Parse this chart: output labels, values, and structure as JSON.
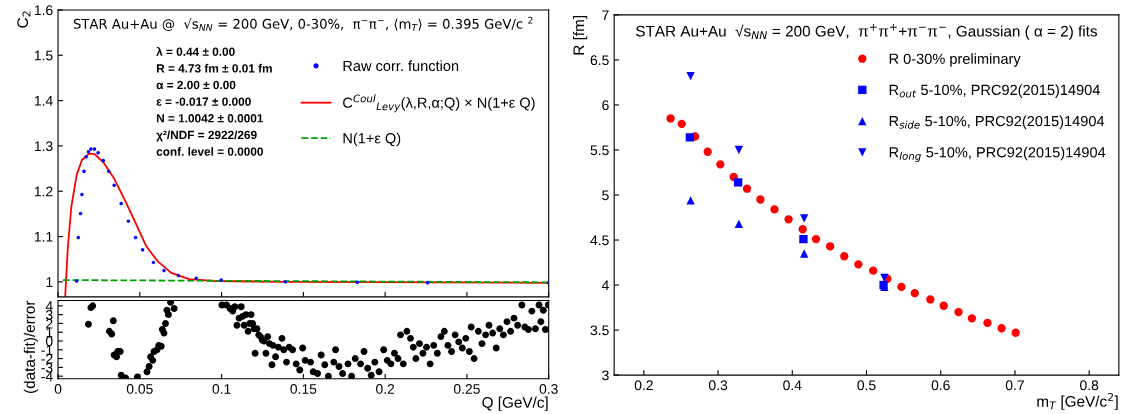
{
  "chart_data": [
    {
      "type": "line",
      "title": "STAR Au+Au @  √s$_{NN}$ = 200 GeV, 0-30%,  π$^{−}$π$^{−}$, ⟨m$_{T}$⟩ = 0.395 GeV/c $^{2}$",
      "ylabel": "C$_{2}$",
      "xlim": [
        0,
        0.3
      ],
      "xticks": [
        0,
        0.05,
        0.1,
        0.15,
        0.2,
        0.25,
        0.3
      ],
      "ylim": [
        0.967,
        1.6
      ],
      "yticks": [
        1,
        1.1,
        1.2,
        1.3,
        1.4,
        1.5,
        1.6
      ],
      "tick_labels": "y",
      "legend": "top right",
      "annotations": [
        "λ = 0.44 ± 0.00",
        "R = 4.73 fm ± 0.01 fm",
        "α = 2.00 ± 0.00",
        "ε = -0.017 ± 0.000",
        "N = 1.0042 ± 0.0001",
        "χ²/NDF = 2922/269",
        "conf. level = 0.0000"
      ],
      "series": [
        {
          "name": "Raw corr. function",
          "type": "scatter",
          "marker": "circle",
          "color": "#0000ff",
          "x": [
            0.0114,
            0.0124,
            0.0138,
            0.0146,
            0.0159,
            0.0172,
            0.0186,
            0.0201,
            0.0223,
            0.0245,
            0.0277,
            0.031,
            0.0343,
            0.0386,
            0.043,
            0.0474,
            0.0517,
            0.0583,
            0.0648,
            0.0736,
            0.0845,
            0.0998,
            0.139,
            0.183,
            0.226,
            0.3
          ],
          "values": [
            1.002,
            1.098,
            1.151,
            1.193,
            1.244,
            1.276,
            1.287,
            1.293,
            1.293,
            1.285,
            1.268,
            1.244,
            1.213,
            1.173,
            1.134,
            1.098,
            1.071,
            1.043,
            1.025,
            1.014,
            1.008,
            1.004,
            1.0,
            0.999,
            0.998,
            0.998
          ]
        },
        {
          "name": "C$^{Coul}$$_{Levy}$(λ,R,α;Q) × N(1+ε Q)",
          "line_style": "solid",
          "color": "#ff0000",
          "x": [
            0.0044,
            0.0059,
            0.0081,
            0.0114,
            0.0146,
            0.019,
            0.0223,
            0.0277,
            0.0343,
            0.0408,
            0.0474,
            0.0539,
            0.0605,
            0.0692,
            0.0801,
            0.0954,
            0.139,
            0.3
          ],
          "values": [
            0.969,
            1.071,
            1.165,
            1.236,
            1.269,
            1.283,
            1.282,
            1.264,
            1.228,
            1.181,
            1.13,
            1.079,
            1.047,
            1.02,
            1.006,
            1.002,
            1.0,
            0.998
          ]
        },
        {
          "name": "N(1+ε Q)",
          "line_style": "dashed",
          "color": "#00a000",
          "x": [
            0.003,
            0.3
          ],
          "values": [
            1.004,
            0.999
          ]
        }
      ]
    },
    {
      "type": "scatter",
      "ylabel": "(data-fit)/error",
      "xlabel": "Q [GeV/c]",
      "xlim": [
        0,
        0.3
      ],
      "xticks": [
        0,
        0.05,
        0.1,
        0.15,
        0.2,
        0.25,
        0.3
      ],
      "ylim": [
        -4.3,
        4.6
      ],
      "yticks": [
        -4,
        -3,
        -2,
        -1,
        0,
        1,
        2,
        3,
        4
      ],
      "series": [
        {
          "marker": "circle",
          "color": "#000000",
          "x": [
            0.0186,
            0.0201,
            0.0212,
            0.0314,
            0.0328,
            0.0338,
            0.0343,
            0.0358,
            0.0365,
            0.038,
            0.0386,
            0.0413,
            0.0485,
            0.0544,
            0.0557,
            0.0566,
            0.0579,
            0.0587,
            0.0605,
            0.0616,
            0.0631,
            0.0638,
            0.0648,
            0.0657,
            0.0666,
            0.0675,
            0.0688,
            0.071,
            0.1002,
            0.103,
            0.1052,
            0.1068,
            0.1081,
            0.1094,
            0.1107,
            0.112,
            0.1129,
            0.1138,
            0.115,
            0.1162,
            0.1172,
            0.118,
            0.119,
            0.1199,
            0.1205,
            0.1216,
            0.1227,
            0.1238,
            0.1249,
            0.126,
            0.1271,
            0.1282,
            0.1293,
            0.1308,
            0.1314,
            0.133,
            0.1347,
            0.1369,
            0.138,
            0.1397,
            0.1413,
            0.1434,
            0.1456,
            0.1478,
            0.1496,
            0.1511,
            0.1544,
            0.156,
            0.1587,
            0.1609,
            0.1631,
            0.1653,
            0.1686,
            0.1697,
            0.1718,
            0.174,
            0.1773,
            0.1795,
            0.1817,
            0.185,
            0.1871,
            0.1893,
            0.1915,
            0.1937,
            0.1963,
            0.1991,
            0.2013,
            0.2035,
            0.2057,
            0.2079,
            0.2094,
            0.2111,
            0.2133,
            0.2155,
            0.2172,
            0.2188,
            0.221,
            0.2231,
            0.2253,
            0.2275,
            0.2297,
            0.2319,
            0.2341,
            0.2362,
            0.2384,
            0.2406,
            0.2428,
            0.245,
            0.2472,
            0.2493,
            0.2515,
            0.2526,
            0.2544,
            0.257,
            0.2592,
            0.2614,
            0.2635,
            0.2657,
            0.2679,
            0.2701,
            0.2723,
            0.2745,
            0.2767,
            0.2788,
            0.281,
            0.2836,
            0.2854,
            0.2876,
            0.2897,
            0.2919,
            0.2941,
            0.2952,
            0.2967,
            0.298,
            0.2998
          ],
          "values": [
            1.9,
            3.8,
            4.0,
            1.1,
            0.8,
            2.3,
            -1.6,
            -1.8,
            -1.2,
            -1.2,
            -3.9,
            -4.2,
            -4.1,
            -3.5,
            -2.9,
            -1.8,
            -2.2,
            -1.2,
            -1.0,
            -0.5,
            -0.6,
            1.3,
            0.9,
            2.0,
            3.5,
            3.0,
            4.4,
            3.7,
            4.1,
            4.1,
            3.7,
            3.4,
            3.9,
            1.8,
            2.6,
            3.9,
            2.8,
            1.8,
            3.0,
            1.1,
            2.0,
            3.0,
            2.0,
            1.4,
            -1.4,
            1.4,
            0.7,
            0.5,
            0.1,
            0.0,
            -1.4,
            0.5,
            -0.3,
            -2.7,
            -0.5,
            -1.8,
            -0.7,
            0.3,
            -1.0,
            -2.4,
            -0.7,
            -1.0,
            -2.6,
            -3.3,
            -0.8,
            -2.2,
            -2.4,
            -3.5,
            -3.7,
            -1.6,
            -2.7,
            -4.0,
            -2.4,
            -1.0,
            -2.9,
            -3.7,
            -2.6,
            -4.0,
            -2.0,
            -2.6,
            -1.2,
            -3.1,
            -3.9,
            -2.4,
            -3.5,
            -1.0,
            -2.2,
            -2.6,
            -1.4,
            -2.0,
            0.7,
            -2.6,
            1.1,
            0.3,
            -0.7,
            -2.0,
            -0.3,
            -1.4,
            -0.7,
            -2.6,
            -0.5,
            -1.4,
            0.5,
            1.1,
            -0.5,
            -1.2,
            0.7,
            -0.1,
            -0.8,
            0.3,
            -1.2,
            1.6,
            -2.0,
            1.1,
            -0.3,
            0.7,
            1.8,
            0.9,
            -0.8,
            1.4,
            0.7,
            2.2,
            1.1,
            2.6,
            1.8,
            4.1,
            1.6,
            1.3,
            3.4,
            1.4,
            4.1,
            2.2,
            3.5,
            1.3,
            4.1
          ]
        }
      ]
    },
    {
      "type": "scatter",
      "title": "STAR Au+Au  √s$_{NN}$ = 200 GeV,  π$^{+}$π$^{+}$+π$^{−}$π$^{−}$, Gaussian ( α = 2) fits",
      "xlabel": "m$_{T}$ [GeV/c$^{2}$]",
      "ylabel": "R [fm]",
      "xlim": [
        0.16,
        0.84
      ],
      "xticks": [
        0.2,
        0.3,
        0.4,
        0.5,
        0.6,
        0.7,
        0.8
      ],
      "ylim": [
        3,
        7
      ],
      "yticks": [
        3,
        3.5,
        4,
        4.5,
        5,
        5.5,
        6,
        6.5,
        7
      ],
      "legend": "top right",
      "series": [
        {
          "name": "R 0-30% preliminary",
          "marker": "circle",
          "color": "#ff0000",
          "x": [
            0.236,
            0.251,
            0.269,
            0.286,
            0.303,
            0.321,
            0.339,
            0.357,
            0.376,
            0.395,
            0.414,
            0.432,
            0.451,
            0.47,
            0.489,
            0.509,
            0.528,
            0.547,
            0.565,
            0.586,
            0.604,
            0.624,
            0.642,
            0.663,
            0.682,
            0.701
          ],
          "values": [
            5.85,
            5.79,
            5.65,
            5.48,
            5.34,
            5.2,
            5.07,
            4.95,
            4.84,
            4.73,
            4.62,
            4.51,
            4.43,
            4.32,
            4.23,
            4.16,
            4.07,
            3.98,
            3.91,
            3.84,
            3.77,
            3.7,
            3.63,
            3.58,
            3.52,
            3.47
          ]
        },
        {
          "name": "R$_{out}$ 5-10%, PRC92(2015)14904",
          "marker": "square",
          "color": "#0000ff",
          "x": [
            0.262,
            0.327,
            0.415,
            0.523
          ],
          "values": [
            5.64,
            5.14,
            4.51,
            4.0
          ]
        },
        {
          "name": "R$_{side}$ 5-10%, PRC92(2015)14904",
          "marker": "triangle",
          "color": "#0000ff",
          "x": [
            0.263,
            0.328,
            0.416,
            0.524
          ],
          "values": [
            4.94,
            4.68,
            4.35,
            3.98
          ]
        },
        {
          "name": "R$_{long}$ 5-10%, PRC92(2015)14904",
          "marker": "triangle_down",
          "color": "#0000ff",
          "x": [
            0.263,
            0.328,
            0.416,
            0.524
          ],
          "values": [
            6.32,
            5.5,
            4.74,
            4.08
          ]
        }
      ]
    }
  ]
}
